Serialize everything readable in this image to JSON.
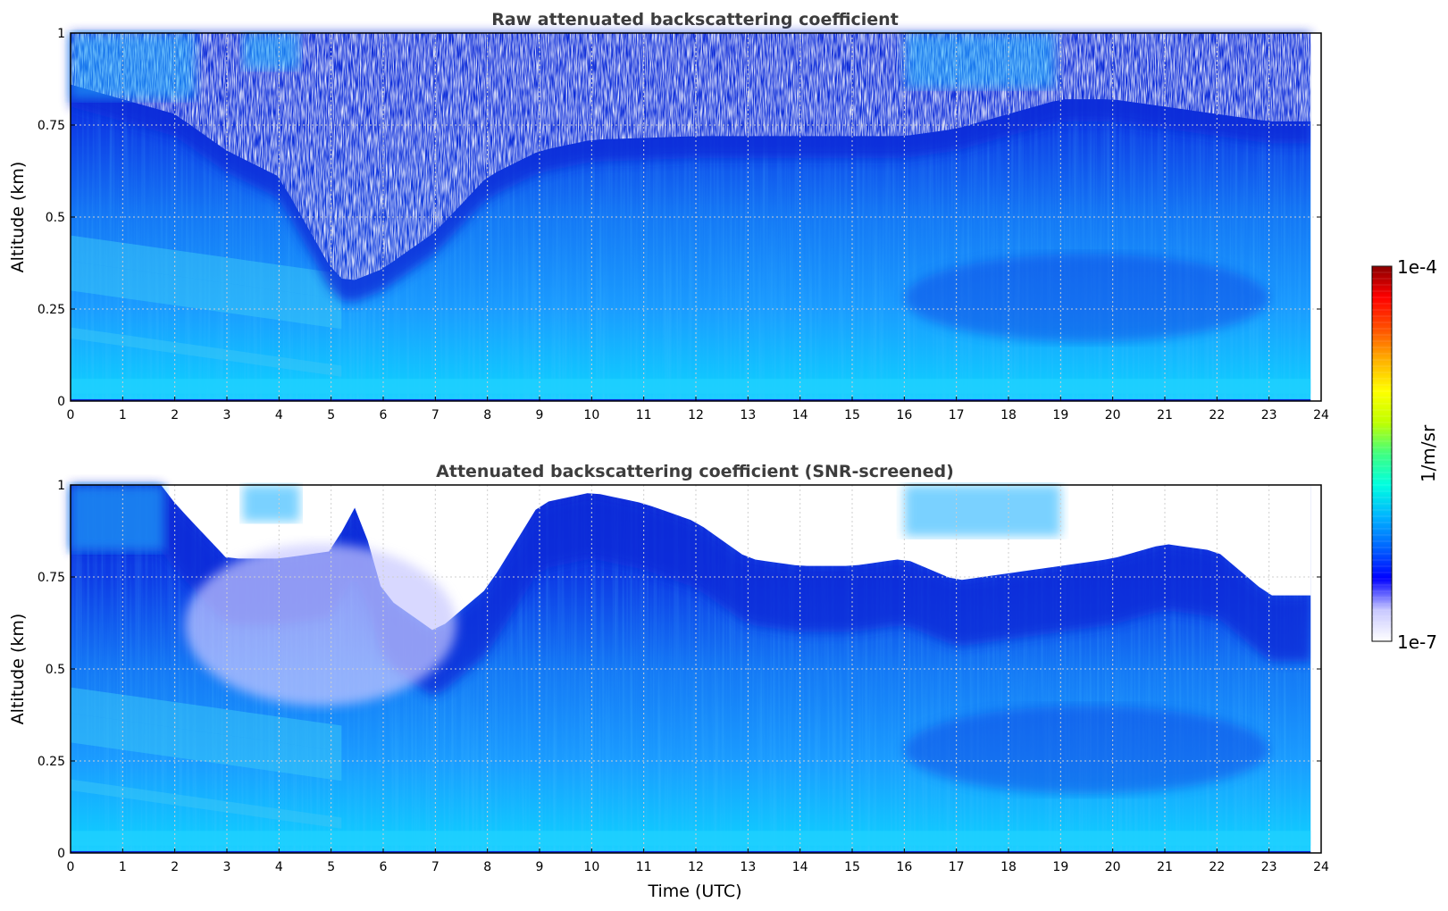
{
  "chart_data": [
    {
      "type": "heatmap",
      "title": "Raw attenuated backscattering coefficient",
      "xlabel": "",
      "ylabel": "Altitude (km)",
      "xlim": [
        0,
        24
      ],
      "ylim": [
        0,
        1
      ],
      "x_ticks": [
        "0",
        "1",
        "2",
        "3",
        "4",
        "5",
        "6",
        "7",
        "8",
        "9",
        "10",
        "11",
        "12",
        "13",
        "14",
        "15",
        "16",
        "17",
        "18",
        "19",
        "20",
        "21",
        "22",
        "23",
        "24"
      ],
      "y_ticks": [
        "0",
        "0.25",
        "0.5",
        "0.75",
        "1"
      ],
      "grid": true,
      "data_end_time": 23.8,
      "cloud_base_km": [
        [
          0,
          0.8
        ],
        [
          2,
          0.72
        ],
        [
          3,
          0.62
        ],
        [
          4,
          0.55
        ],
        [
          5,
          0.3
        ],
        [
          5.3,
          0.26
        ],
        [
          6,
          0.3
        ],
        [
          7,
          0.4
        ],
        [
          8,
          0.55
        ],
        [
          9,
          0.62
        ],
        [
          10,
          0.65
        ],
        [
          12,
          0.66
        ],
        [
          14,
          0.66
        ],
        [
          16,
          0.66
        ],
        [
          17,
          0.68
        ],
        [
          18,
          0.72
        ],
        [
          19,
          0.76
        ],
        [
          20,
          0.76
        ],
        [
          21,
          0.74
        ],
        [
          22,
          0.72
        ],
        [
          23,
          0.7
        ],
        [
          23.8,
          0.7
        ]
      ],
      "noise_region": "white/blue speckle above cloud base",
      "colormap": "jet",
      "colors": {
        "background": "#1a8cff",
        "near_surface": "#1fd0ff",
        "cloud": "#0a2ad8",
        "aerosol_layer": "#39c5f5"
      }
    },
    {
      "type": "heatmap",
      "title": "Attenuated backscattering coefficient (SNR-screened)",
      "xlabel": "Time (UTC)",
      "ylabel": "Altitude (km)",
      "xlim": [
        0,
        24
      ],
      "ylim": [
        0,
        1
      ],
      "x_ticks": [
        "0",
        "1",
        "2",
        "3",
        "4",
        "5",
        "6",
        "7",
        "8",
        "9",
        "10",
        "11",
        "12",
        "13",
        "14",
        "15",
        "16",
        "17",
        "18",
        "19",
        "20",
        "21",
        "22",
        "23",
        "24"
      ],
      "y_ticks": [
        "0",
        "0.25",
        "0.5",
        "0.75",
        "1"
      ],
      "grid": true,
      "data_end_time": 23.8,
      "screened_top_km": [
        [
          0,
          1.0
        ],
        [
          1.8,
          1.0
        ],
        [
          2,
          0.95
        ],
        [
          3,
          0.8
        ],
        [
          4,
          0.8
        ],
        [
          5,
          0.82
        ],
        [
          5.5,
          0.95
        ],
        [
          6,
          0.7
        ],
        [
          7,
          0.6
        ],
        [
          8,
          0.72
        ],
        [
          9,
          0.95
        ],
        [
          10,
          0.98
        ],
        [
          11,
          0.95
        ],
        [
          12,
          0.9
        ],
        [
          13,
          0.8
        ],
        [
          14,
          0.78
        ],
        [
          15,
          0.78
        ],
        [
          16,
          0.8
        ],
        [
          17,
          0.74
        ],
        [
          18,
          0.76
        ],
        [
          19,
          0.78
        ],
        [
          20,
          0.8
        ],
        [
          21,
          0.84
        ],
        [
          22,
          0.82
        ],
        [
          23,
          0.7
        ],
        [
          23.8,
          0.7
        ]
      ],
      "colormap": "jet",
      "colors": {
        "screened": "#ffffff",
        "cloud": "#0a2ad8",
        "cloud_faint": "#c8c8ff"
      }
    }
  ],
  "colorbar": {
    "max_label": "1e-4",
    "min_label": "1e-7",
    "unit_label": "1/m/sr",
    "stops": [
      "#ffffff",
      "#c8c8ff",
      "#0000ff",
      "#0064ff",
      "#00b4ff",
      "#00ffe0",
      "#40ff80",
      "#c0ff00",
      "#ffff00",
      "#ffb000",
      "#ff5000",
      "#ff0000",
      "#8b0000"
    ]
  }
}
